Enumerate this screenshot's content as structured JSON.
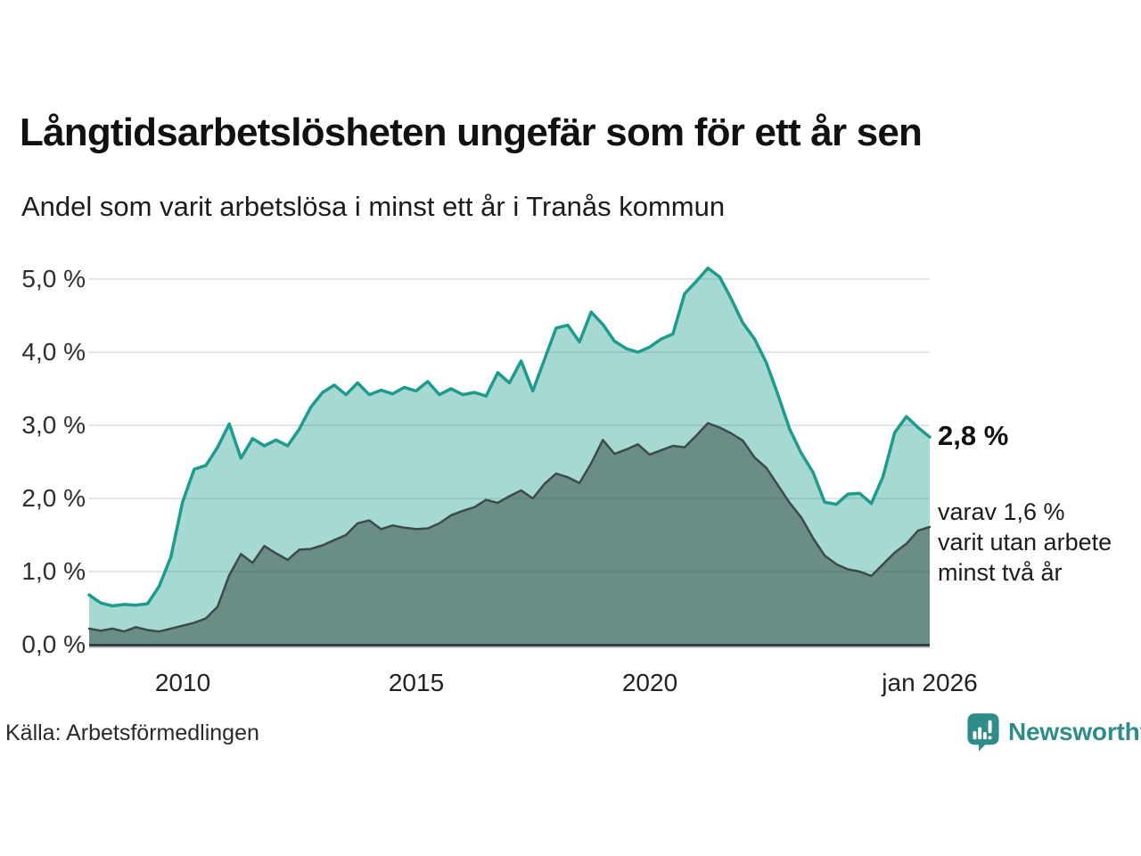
{
  "header": {
    "title": "Långtidsarbetslösheten ungefär som för ett år sen",
    "subtitle": "Andel som varit arbetslösa i minst ett år i Tranås kommun"
  },
  "annotations": {
    "latest_total": "2,8 %",
    "detail_line1": "varav 1,6 %",
    "detail_line2": "varit utan arbete",
    "detail_line3": "minst två år"
  },
  "footer": {
    "source": "Källa: Arbetsförmedlingen",
    "brand": "Newsworthy",
    "brand_color": "#2e8c8a"
  },
  "chart_data": {
    "type": "area",
    "title": "Långtidsarbetslösheten ungefär som för ett år sen",
    "subtitle": "Andel som varit arbetslösa i minst ett år i Tranås kommun",
    "unit": "%",
    "x_start": 2008,
    "x_step": 0.25,
    "x_end": 2026,
    "ylim": [
      0,
      5.3
    ],
    "grid": true,
    "legend_position": "right-annotations",
    "yticks": [
      {
        "value": 0,
        "label": "0,0 %"
      },
      {
        "value": 1,
        "label": "1,0 %"
      },
      {
        "value": 2,
        "label": "2,0 %"
      },
      {
        "value": 3,
        "label": "3,0 %"
      },
      {
        "value": 4,
        "label": "4,0 %"
      },
      {
        "value": 5,
        "label": "5,0 %"
      }
    ],
    "xticks": [
      {
        "year": 2010,
        "label": "2010"
      },
      {
        "year": 2015,
        "label": "2015"
      },
      {
        "year": 2020,
        "label": "2020"
      },
      {
        "year": 2026,
        "label": "jan 2026"
      }
    ],
    "series": [
      {
        "name": "Arbetslösa minst ett år",
        "latest_value": "2,8 %",
        "color": "#1d9c8d",
        "fill": "rgba(23,155,139,0.38)",
        "stroke_width": 3.5,
        "values": [
          0.68,
          0.57,
          0.53,
          0.55,
          0.54,
          0.56,
          0.8,
          1.2,
          1.95,
          2.4,
          2.45,
          2.7,
          3.02,
          2.55,
          2.82,
          2.72,
          2.8,
          2.72,
          2.95,
          3.25,
          3.45,
          3.55,
          3.42,
          3.58,
          3.42,
          3.48,
          3.43,
          3.52,
          3.47,
          3.6,
          3.42,
          3.5,
          3.42,
          3.45,
          3.4,
          3.72,
          3.58,
          3.88,
          3.47,
          3.9,
          4.33,
          4.37,
          4.14,
          4.55,
          4.38,
          4.15,
          4.05,
          4.0,
          4.07,
          4.18,
          4.25,
          4.8,
          4.97,
          5.15,
          5.03,
          4.73,
          4.4,
          4.18,
          3.86,
          3.42,
          2.95,
          2.62,
          2.36,
          1.95,
          1.92,
          2.06,
          2.07,
          1.93,
          2.3,
          2.9,
          3.12,
          2.97,
          2.84
        ]
      },
      {
        "name": "Varav utan arbete minst två år",
        "latest_value": "1,6 %",
        "color": "#3c4b47",
        "fill": "rgba(47,66,62,0.50)",
        "stroke_width": 2.5,
        "values": [
          0.22,
          0.19,
          0.22,
          0.18,
          0.24,
          0.2,
          0.18,
          0.22,
          0.26,
          0.3,
          0.36,
          0.52,
          0.95,
          1.24,
          1.12,
          1.35,
          1.25,
          1.16,
          1.3,
          1.31,
          1.36,
          1.43,
          1.5,
          1.66,
          1.7,
          1.58,
          1.63,
          1.6,
          1.58,
          1.59,
          1.66,
          1.77,
          1.83,
          1.88,
          1.98,
          1.94,
          2.03,
          2.11,
          2.0,
          2.2,
          2.34,
          2.29,
          2.21,
          2.48,
          2.8,
          2.61,
          2.67,
          2.74,
          2.6,
          2.66,
          2.72,
          2.7,
          2.86,
          3.03,
          2.97,
          2.89,
          2.79,
          2.56,
          2.42,
          2.18,
          1.94,
          1.74,
          1.46,
          1.22,
          1.1,
          1.03,
          1.0,
          0.94,
          1.1,
          1.26,
          1.38,
          1.56,
          1.61
        ]
      }
    ],
    "colors": {
      "grid": "#e3e4e7",
      "baseline": "#263238",
      "baseline_shadow": "#a9adb3"
    }
  }
}
